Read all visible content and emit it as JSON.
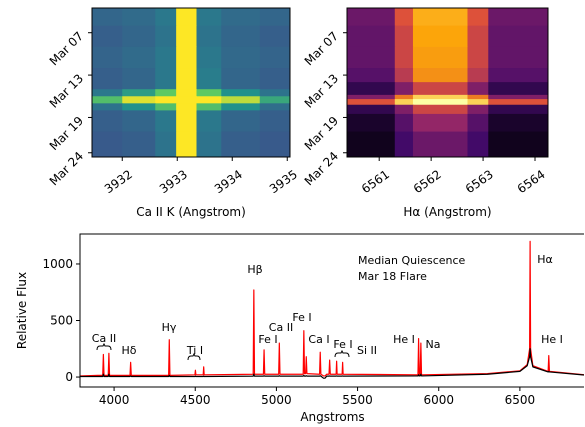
{
  "chart_data": [
    {
      "type": "heatmap",
      "xlabel": "Ca II K (Angstrom)",
      "xlim": [
        3931.45,
        3935.05
      ],
      "xticks": [
        3932,
        3933,
        3934,
        3935
      ],
      "ylim": [
        24.6,
        3.5
      ],
      "yticks": [
        {
          "value": 7,
          "label": "Mar 07"
        },
        {
          "value": 13,
          "label": "Mar 13"
        },
        {
          "value": 19,
          "label": "Mar 19"
        },
        {
          "value": 24,
          "label": "Mar 24"
        }
      ],
      "xbins": [
        3931.45,
        3932.0,
        3932.6,
        3932.98,
        3933.35,
        3933.8,
        3934.5,
        3935.05
      ],
      "ybins": [
        3.5,
        6,
        9,
        12,
        15,
        16,
        17,
        18,
        21,
        24.6
      ],
      "colormap": [
        "#440154",
        "#3b528b",
        "#21918c",
        "#5ec962",
        "#fde725"
      ],
      "z": [
        [
          0.33,
          0.35,
          0.4,
          1,
          0.4,
          0.35,
          0.33
        ],
        [
          0.3,
          0.33,
          0.38,
          1,
          0.38,
          0.33,
          0.3
        ],
        [
          0.32,
          0.35,
          0.4,
          1,
          0.4,
          0.34,
          0.32
        ],
        [
          0.3,
          0.33,
          0.4,
          1,
          0.42,
          0.33,
          0.3
        ],
        [
          0.4,
          0.55,
          0.75,
          1,
          0.75,
          0.5,
          0.38
        ],
        [
          0.7,
          0.95,
          1,
          1,
          1,
          0.9,
          0.6
        ],
        [
          0.38,
          0.5,
          0.7,
          1,
          0.7,
          0.5,
          0.36
        ],
        [
          0.3,
          0.33,
          0.4,
          1,
          0.4,
          0.33,
          0.3
        ],
        [
          0.28,
          0.3,
          0.38,
          1,
          0.38,
          0.3,
          0.28
        ]
      ]
    },
    {
      "type": "heatmap",
      "xlabel": "Hα (Angstrom)",
      "xlim": [
        6560.38,
        6564.25
      ],
      "xticks": [
        6561,
        6562,
        6563,
        6564
      ],
      "ylim": [
        24.6,
        3.5
      ],
      "yticks": [
        {
          "value": 7,
          "label": "Mar 07"
        },
        {
          "value": 13,
          "label": "Mar 13"
        },
        {
          "value": 19,
          "label": "Mar 19"
        },
        {
          "value": 24,
          "label": "Mar 24"
        }
      ],
      "xbins": [
        6560.38,
        6561.3,
        6561.65,
        6562.7,
        6563.1,
        6564.25
      ],
      "ybins": [
        3.5,
        6,
        9,
        12,
        14,
        15.8,
        16.4,
        17.2,
        18.5,
        21,
        24.6
      ],
      "colormap": [
        "#000004",
        "#420a68",
        "#932667",
        "#dd513a",
        "#fca50a",
        "#fcffa4"
      ],
      "z": [
        [
          0.3,
          0.6,
          0.82,
          0.6,
          0.3
        ],
        [
          0.28,
          0.55,
          0.8,
          0.55,
          0.28
        ],
        [
          0.28,
          0.55,
          0.78,
          0.55,
          0.28
        ],
        [
          0.25,
          0.5,
          0.75,
          0.5,
          0.25
        ],
        [
          0.15,
          0.35,
          0.55,
          0.35,
          0.15
        ],
        [
          0.35,
          0.7,
          0.9,
          0.7,
          0.35
        ],
        [
          0.6,
          0.9,
          1,
          0.9,
          0.6
        ],
        [
          0.15,
          0.35,
          0.55,
          0.35,
          0.15
        ],
        [
          0.08,
          0.25,
          0.4,
          0.25,
          0.08
        ],
        [
          0.05,
          0.2,
          0.3,
          0.2,
          0.05
        ]
      ]
    },
    {
      "type": "line",
      "xlabel": "Angstroms",
      "ylabel": "Relative Flux",
      "xlim": [
        3790,
        6895
      ],
      "xticks": [
        4000,
        4500,
        5000,
        5500,
        6000,
        6500
      ],
      "ylim": [
        -88,
        1265
      ],
      "yticks": [
        0,
        500,
        1000
      ],
      "x": [
        3790,
        3900,
        3930,
        3934,
        3938,
        3964,
        3968,
        3972,
        4098,
        4102,
        4106,
        4336,
        4340,
        4344,
        4498,
        4501,
        4504,
        4549,
        4552,
        4555,
        4857,
        4861,
        4865,
        4920,
        4924,
        4928,
        5014,
        5018,
        5022,
        5165,
        5169,
        5173,
        5180,
        5184,
        5188,
        5266,
        5270,
        5274,
        5290,
        5300,
        5310,
        5324,
        5328,
        5332,
        5368,
        5371,
        5374,
        5405,
        5408,
        5411,
        5872,
        5876,
        5880,
        5886,
        5890,
        5894,
        6300,
        6500,
        6545,
        6560,
        6563,
        6566,
        6580,
        6674,
        6678,
        6682,
        6895
      ],
      "series": [
        {
          "name": "Mar 18 Flare",
          "color": "#ff0000",
          "values": [
            10,
            15,
            15,
            200,
            15,
            15,
            210,
            15,
            15,
            130,
            15,
            15,
            330,
            15,
            20,
            60,
            20,
            20,
            90,
            20,
            25,
            770,
            25,
            25,
            240,
            25,
            25,
            300,
            25,
            25,
            410,
            30,
            30,
            180,
            30,
            25,
            220,
            25,
            10,
            10,
            25,
            25,
            150,
            25,
            25,
            140,
            25,
            25,
            130,
            25,
            20,
            340,
            20,
            20,
            300,
            20,
            30,
            55,
            110,
            250,
            1200,
            250,
            100,
            50,
            190,
            50,
            20
          ]
        },
        {
          "name": "Median Quiescence",
          "color": "#000000",
          "values": [
            5,
            5,
            5,
            25,
            5,
            5,
            25,
            5,
            5,
            10,
            5,
            5,
            15,
            5,
            5,
            8,
            5,
            5,
            8,
            5,
            8,
            25,
            8,
            8,
            12,
            8,
            8,
            12,
            8,
            8,
            15,
            8,
            8,
            12,
            8,
            8,
            12,
            8,
            -10,
            -10,
            8,
            8,
            10,
            8,
            8,
            10,
            8,
            8,
            10,
            8,
            10,
            20,
            10,
            10,
            25,
            10,
            25,
            50,
            100,
            180,
            250,
            180,
            90,
            45,
            50,
            45,
            18
          ]
        }
      ],
      "annotations": [
        "Ca II",
        "Hδ",
        "Hγ",
        "Ti I",
        "Hβ",
        "Fe I",
        "Ca II",
        "Fe I",
        "Ca I",
        "Fe I",
        "Si II",
        "He I",
        "Na",
        "Hα",
        "He I"
      ]
    }
  ]
}
